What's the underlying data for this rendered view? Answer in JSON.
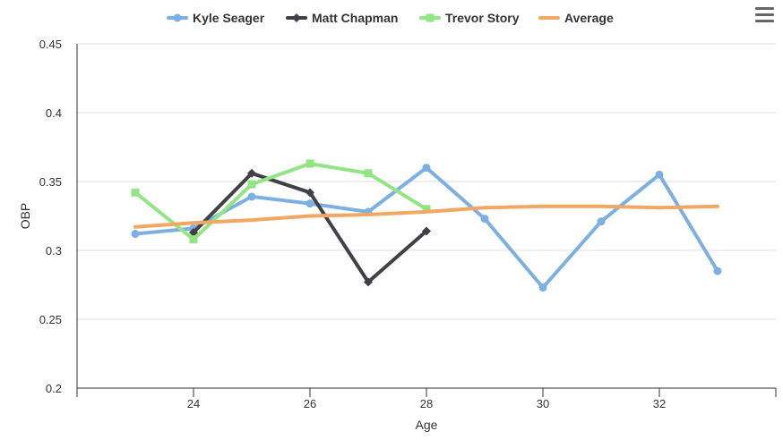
{
  "chart_data": {
    "type": "line",
    "title": "",
    "xlabel": "Age",
    "ylabel": "OBP",
    "xlim": [
      22,
      34
    ],
    "ylim": [
      0.2,
      0.45
    ],
    "x_ticks": [
      24,
      26,
      28,
      30,
      32
    ],
    "y_ticks": [
      0.2,
      0.25,
      0.3,
      0.35,
      0.4,
      0.45
    ],
    "x_tick_labels": [
      "24",
      "26",
      "28",
      "30",
      "32"
    ],
    "y_tick_labels": [
      "0.2",
      "0.25",
      "0.3",
      "0.35",
      "0.4",
      "0.45"
    ],
    "grid": true,
    "legend_position": "top-center",
    "series": [
      {
        "name": "Kyle Seager",
        "color": "#7cb0e3",
        "marker": "circle",
        "x": [
          23,
          24,
          25,
          26,
          27,
          28,
          29,
          30,
          31,
          32,
          33
        ],
        "y": [
          0.312,
          0.316,
          0.339,
          0.334,
          0.328,
          0.36,
          0.323,
          0.273,
          0.321,
          0.355,
          0.285
        ]
      },
      {
        "name": "Matt Chapman",
        "color": "#404144",
        "marker": "diamond",
        "x": [
          24,
          25,
          26,
          27,
          28
        ],
        "y": [
          0.313,
          0.356,
          0.342,
          0.277,
          0.314
        ]
      },
      {
        "name": "Trevor Story",
        "color": "#91e583",
        "marker": "square",
        "x": [
          23,
          24,
          25,
          26,
          27,
          28
        ],
        "y": [
          0.342,
          0.308,
          0.348,
          0.363,
          0.356,
          0.33
        ]
      },
      {
        "name": "Average",
        "color": "#f0a863",
        "marker": "none",
        "x": [
          23,
          24,
          25,
          26,
          27,
          28,
          29,
          30,
          31,
          32,
          33
        ],
        "y": [
          0.317,
          0.32,
          0.322,
          0.325,
          0.326,
          0.328,
          0.331,
          0.332,
          0.332,
          0.331,
          0.332
        ]
      }
    ]
  },
  "toolbar": {
    "menu_icon": "hamburger-menu-icon"
  }
}
